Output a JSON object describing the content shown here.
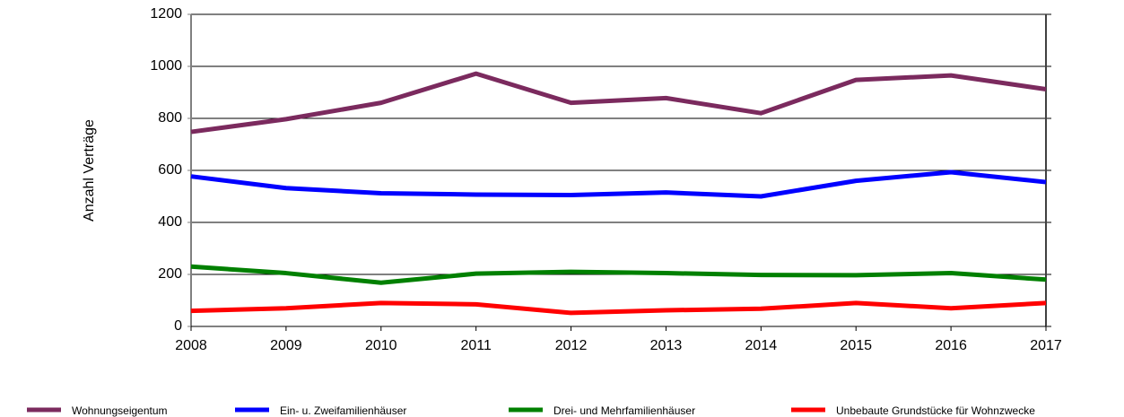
{
  "chart_data": {
    "type": "line",
    "y_label": "Anzahl Verträge",
    "x": [
      2008,
      2009,
      2010,
      2011,
      2012,
      2013,
      2014,
      2015,
      2016,
      2017
    ],
    "xlim": [
      2008,
      2017
    ],
    "xticks": [
      2008,
      2009,
      2010,
      2011,
      2012,
      2013,
      2014,
      2015,
      2016,
      2017
    ],
    "ylim": [
      0,
      1200
    ],
    "yticks": [
      0,
      200,
      400,
      600,
      800,
      1000,
      1200
    ],
    "grid": true,
    "series": [
      {
        "name": "Wohnungseigentum",
        "color": "#7b2a5e",
        "values": [
          748,
          797,
          860,
          972,
          860,
          878,
          820,
          948,
          965,
          912
        ]
      },
      {
        "name": "Ein- u. Zweifamilienhäuser",
        "color": "#0000ff",
        "values": [
          577,
          532,
          512,
          507,
          505,
          515,
          500,
          560,
          593,
          555
        ]
      },
      {
        "name": "Drei- und Mehrfamilienhäuser",
        "color": "#008000",
        "values": [
          230,
          205,
          168,
          203,
          210,
          205,
          198,
          197,
          205,
          180
        ]
      },
      {
        "name": "Unbebaute Grundstücke für Wohnzwecke",
        "color": "#ff0000",
        "values": [
          60,
          70,
          90,
          85,
          52,
          62,
          68,
          90,
          70,
          90
        ]
      }
    ]
  }
}
